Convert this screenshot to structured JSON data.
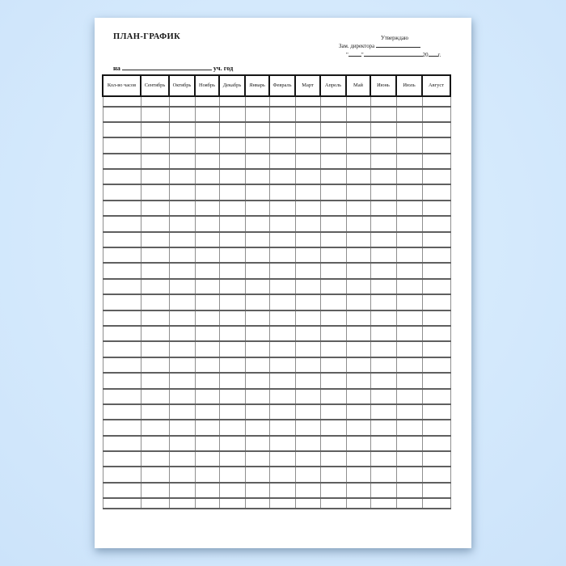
{
  "doc": {
    "title": "ПЛАН-ГРАФИК",
    "approval": {
      "approve": "Утверждаю",
      "deputy": "Зам. директора",
      "quote": "\"",
      "year_prefix": "20",
      "year_suffix": "г."
    },
    "term": {
      "preposition": "на",
      "suffix": "уч. год"
    }
  },
  "table": {
    "columns": [
      "Кол-во часов",
      "Сентябрь",
      "Октябрь",
      "Ноябрь",
      "Декабрь",
      "Январь",
      "Февраль",
      "Март",
      "Апрель",
      "Май",
      "Июнь",
      "Июль",
      "Август"
    ],
    "row_count": 27,
    "cells": "empty"
  },
  "colors": {
    "background": "#d4e9fc",
    "paper": "#ffffff",
    "header_border": "#151515",
    "grid_horizontal": "#5f5f5f",
    "grid_vertical": "#8f8f8f",
    "text": "#161616"
  }
}
